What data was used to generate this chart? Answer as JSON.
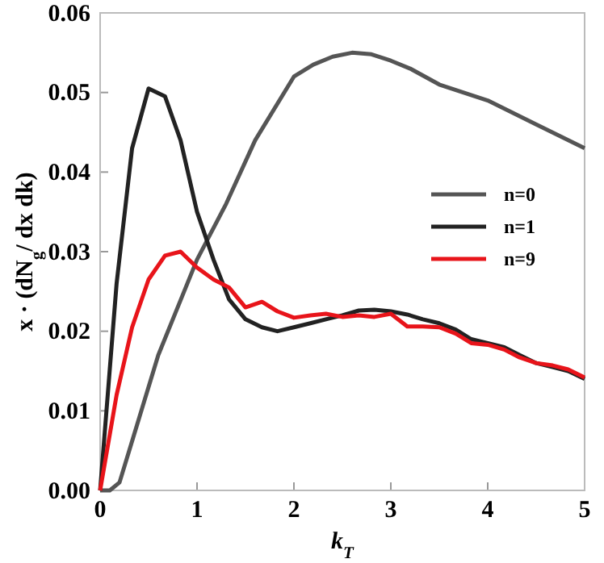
{
  "chart_data": {
    "type": "line",
    "xlabel": "k$_{T}$",
    "ylabel": "x · (dN$_{g}$/ dx dk)",
    "xlim": [
      0,
      5
    ],
    "ylim": [
      0,
      0.06
    ],
    "xticks": [
      0,
      1,
      2,
      3,
      4,
      5
    ],
    "yticks": [
      {
        "value": 0,
        "label": "0.00"
      },
      {
        "value": 0.01,
        "label": "0.01"
      },
      {
        "value": 0.02,
        "label": "0.02"
      },
      {
        "value": 0.03,
        "label": "0.03"
      },
      {
        "value": 0.04,
        "label": "0.04"
      },
      {
        "value": 0.05,
        "label": "0.05"
      },
      {
        "value": 0.06,
        "label": "0.06"
      }
    ],
    "grid": false,
    "legend": "right",
    "marker": "none",
    "line_style": "solid",
    "series": [
      {
        "name": "n=0",
        "color": "#555555",
        "x": [
          0,
          0.1,
          0.2,
          0.3,
          0.4,
          0.5,
          0.6,
          0.8,
          1.0,
          1.3,
          1.6,
          2.0,
          2.2,
          2.4,
          2.6,
          2.8,
          3.0,
          3.2,
          3.5,
          4.0,
          4.5,
          5.0
        ],
        "values": [
          0,
          0,
          0.001,
          0.005,
          0.009,
          0.013,
          0.017,
          0.023,
          0.029,
          0.036,
          0.044,
          0.052,
          0.0535,
          0.0545,
          0.055,
          0.0548,
          0.054,
          0.053,
          0.051,
          0.049,
          0.046,
          0.043
        ]
      },
      {
        "name": "n=1",
        "color": "#222222",
        "x": [
          0,
          0.17,
          0.33,
          0.5,
          0.67,
          0.83,
          1.0,
          1.17,
          1.33,
          1.5,
          1.67,
          1.83,
          2.0,
          2.17,
          2.33,
          2.5,
          2.67,
          2.83,
          3.0,
          3.17,
          3.33,
          3.5,
          3.67,
          3.83,
          4.0,
          4.17,
          4.33,
          4.5,
          4.67,
          4.83,
          5.0
        ],
        "values": [
          0,
          0.026,
          0.043,
          0.0505,
          0.0495,
          0.044,
          0.035,
          0.029,
          0.024,
          0.0215,
          0.0205,
          0.02,
          0.0205,
          0.021,
          0.0215,
          0.022,
          0.0226,
          0.0227,
          0.0225,
          0.0221,
          0.0215,
          0.021,
          0.0202,
          0.019,
          0.0185,
          0.018,
          0.017,
          0.016,
          0.0155,
          0.015,
          0.014
        ]
      },
      {
        "name": "n=9",
        "color": "#e8141a",
        "x": [
          0,
          0.17,
          0.33,
          0.5,
          0.67,
          0.83,
          1.0,
          1.17,
          1.33,
          1.5,
          1.67,
          1.83,
          2.0,
          2.17,
          2.33,
          2.5,
          2.67,
          2.83,
          3.0,
          3.17,
          3.33,
          3.5,
          3.67,
          3.83,
          4.0,
          4.17,
          4.33,
          4.5,
          4.67,
          4.83,
          5.0
        ],
        "values": [
          0,
          0.012,
          0.0205,
          0.0265,
          0.0295,
          0.03,
          0.028,
          0.0265,
          0.0255,
          0.023,
          0.0237,
          0.0225,
          0.0217,
          0.022,
          0.0222,
          0.0218,
          0.022,
          0.0218,
          0.0222,
          0.0206,
          0.0206,
          0.0205,
          0.0197,
          0.0185,
          0.0183,
          0.0177,
          0.0167,
          0.016,
          0.0157,
          0.0152,
          0.0142
        ]
      }
    ]
  }
}
